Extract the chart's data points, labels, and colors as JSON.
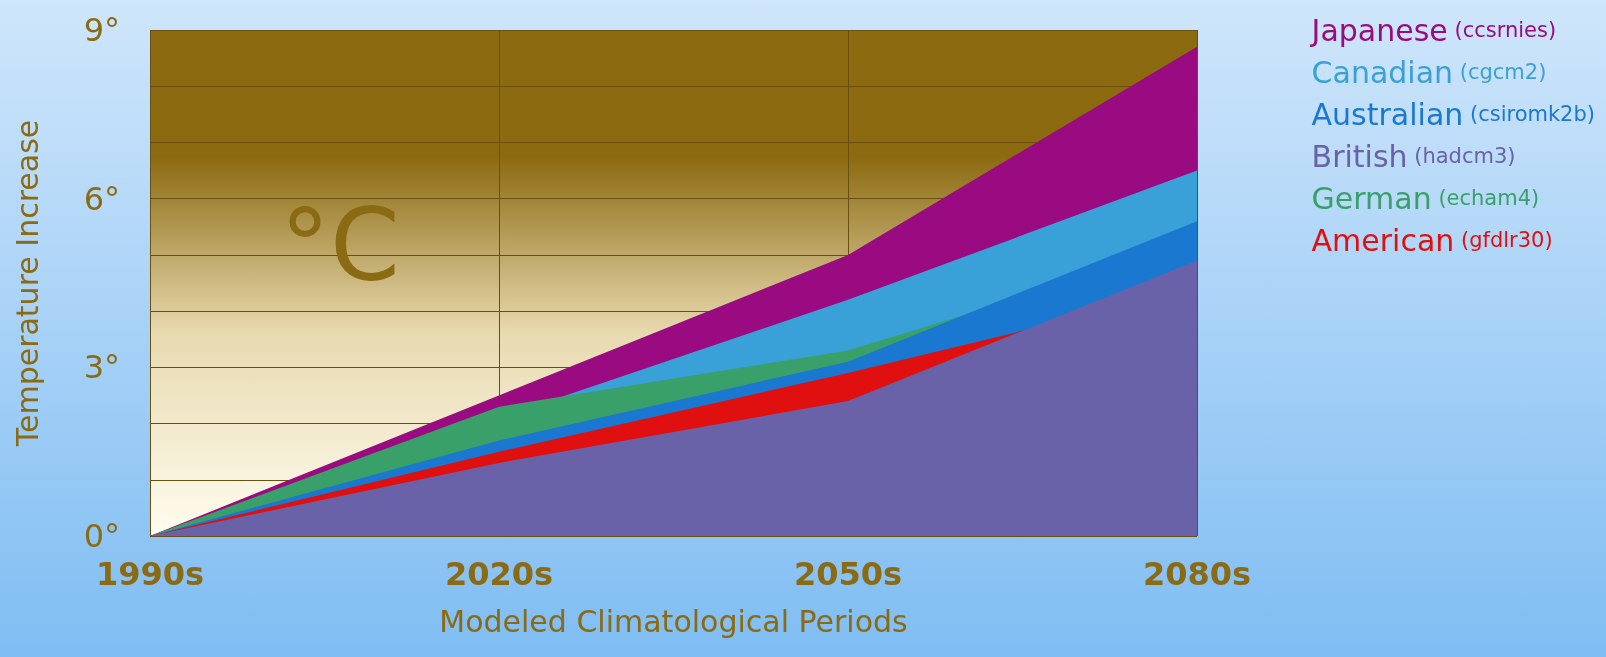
{
  "chart_data": {
    "type": "area",
    "xlabel": "Modeled Climatological Periods",
    "ylabel": "Temperature Increase",
    "annotations": [
      "°C"
    ],
    "categories": [
      "1990s",
      "2020s",
      "2050s",
      "2080s"
    ],
    "ylim": [
      0,
      9
    ],
    "yticks": [
      {
        "value": 0,
        "label": "0°"
      },
      {
        "value": 1,
        "label": null
      },
      {
        "value": 2,
        "label": null
      },
      {
        "value": 3,
        "label": "3°"
      },
      {
        "value": 4,
        "label": null
      },
      {
        "value": 5,
        "label": null
      },
      {
        "value": 6,
        "label": "6°"
      },
      {
        "value": 7,
        "label": null
      },
      {
        "value": 8,
        "label": null
      },
      {
        "value": 9,
        "label": "9°"
      }
    ],
    "grid": true,
    "legend": "right",
    "series": [
      {
        "name": "Japanese (ccsrnies)",
        "color": "#9a0a80",
        "values": [
          0,
          null,
          5.0,
          8.7
        ]
      },
      {
        "name": "Canadian (cgcm2)",
        "color": "#3aa0d8",
        "values": [
          0,
          null,
          4.2,
          6.5
        ]
      },
      {
        "name": "Australian (csiromk2b)",
        "color": "#1a78d0",
        "values": [
          0,
          1.7,
          3.1,
          5.6
        ]
      },
      {
        "name": "British (hadcm3)",
        "color": "#6a62a8",
        "values": [
          0,
          1.3,
          2.4,
          4.9
        ]
      },
      {
        "name": "German (echam4)",
        "color": "#3aa06a",
        "values": [
          0,
          2.3,
          3.3,
          5.2
        ]
      },
      {
        "name": "American (gfdlr30)",
        "color": "#e01010",
        "values": [
          0,
          1.5,
          2.9,
          4.4
        ]
      }
    ]
  }
}
